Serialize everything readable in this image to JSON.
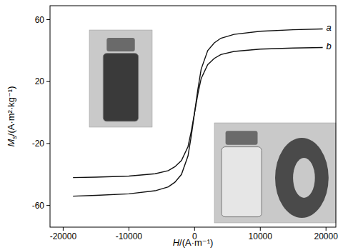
{
  "chart_data": {
    "type": "line",
    "x_label": "H/(A·m⁻¹)",
    "y_label": "Ms/(A·m²·kg⁻¹)",
    "x": [
      -18500,
      -15000,
      -10000,
      -6000,
      -4000,
      -3000,
      -2000,
      -1000,
      -500,
      0,
      500,
      1000,
      2000,
      3000,
      4000,
      6000,
      10000,
      15000,
      19500
    ],
    "series": [
      {
        "name": "a",
        "color": "#111111",
        "values": [
          -54,
          -53.5,
          -52.5,
          -50.5,
          -48,
          -45,
          -40,
          -28,
          -15,
          0,
          15,
          28,
          40,
          45,
          48,
          50.5,
          52.5,
          53.5,
          54
        ]
      },
      {
        "name": "b",
        "color": "#111111",
        "values": [
          -42,
          -41.7,
          -41,
          -39.5,
          -37.5,
          -35,
          -31,
          -22,
          -12,
          0,
          12,
          22,
          31,
          35,
          37.5,
          39.5,
          41,
          41.7,
          42
        ]
      }
    ],
    "xlim": [
      -22000,
      21500
    ],
    "ylim": [
      -74,
      69
    ],
    "xticks": [
      -20000,
      -10000,
      0,
      10000,
      20000
    ],
    "yticks": [
      -60,
      -20,
      20,
      60
    ],
    "grid": false
  }
}
